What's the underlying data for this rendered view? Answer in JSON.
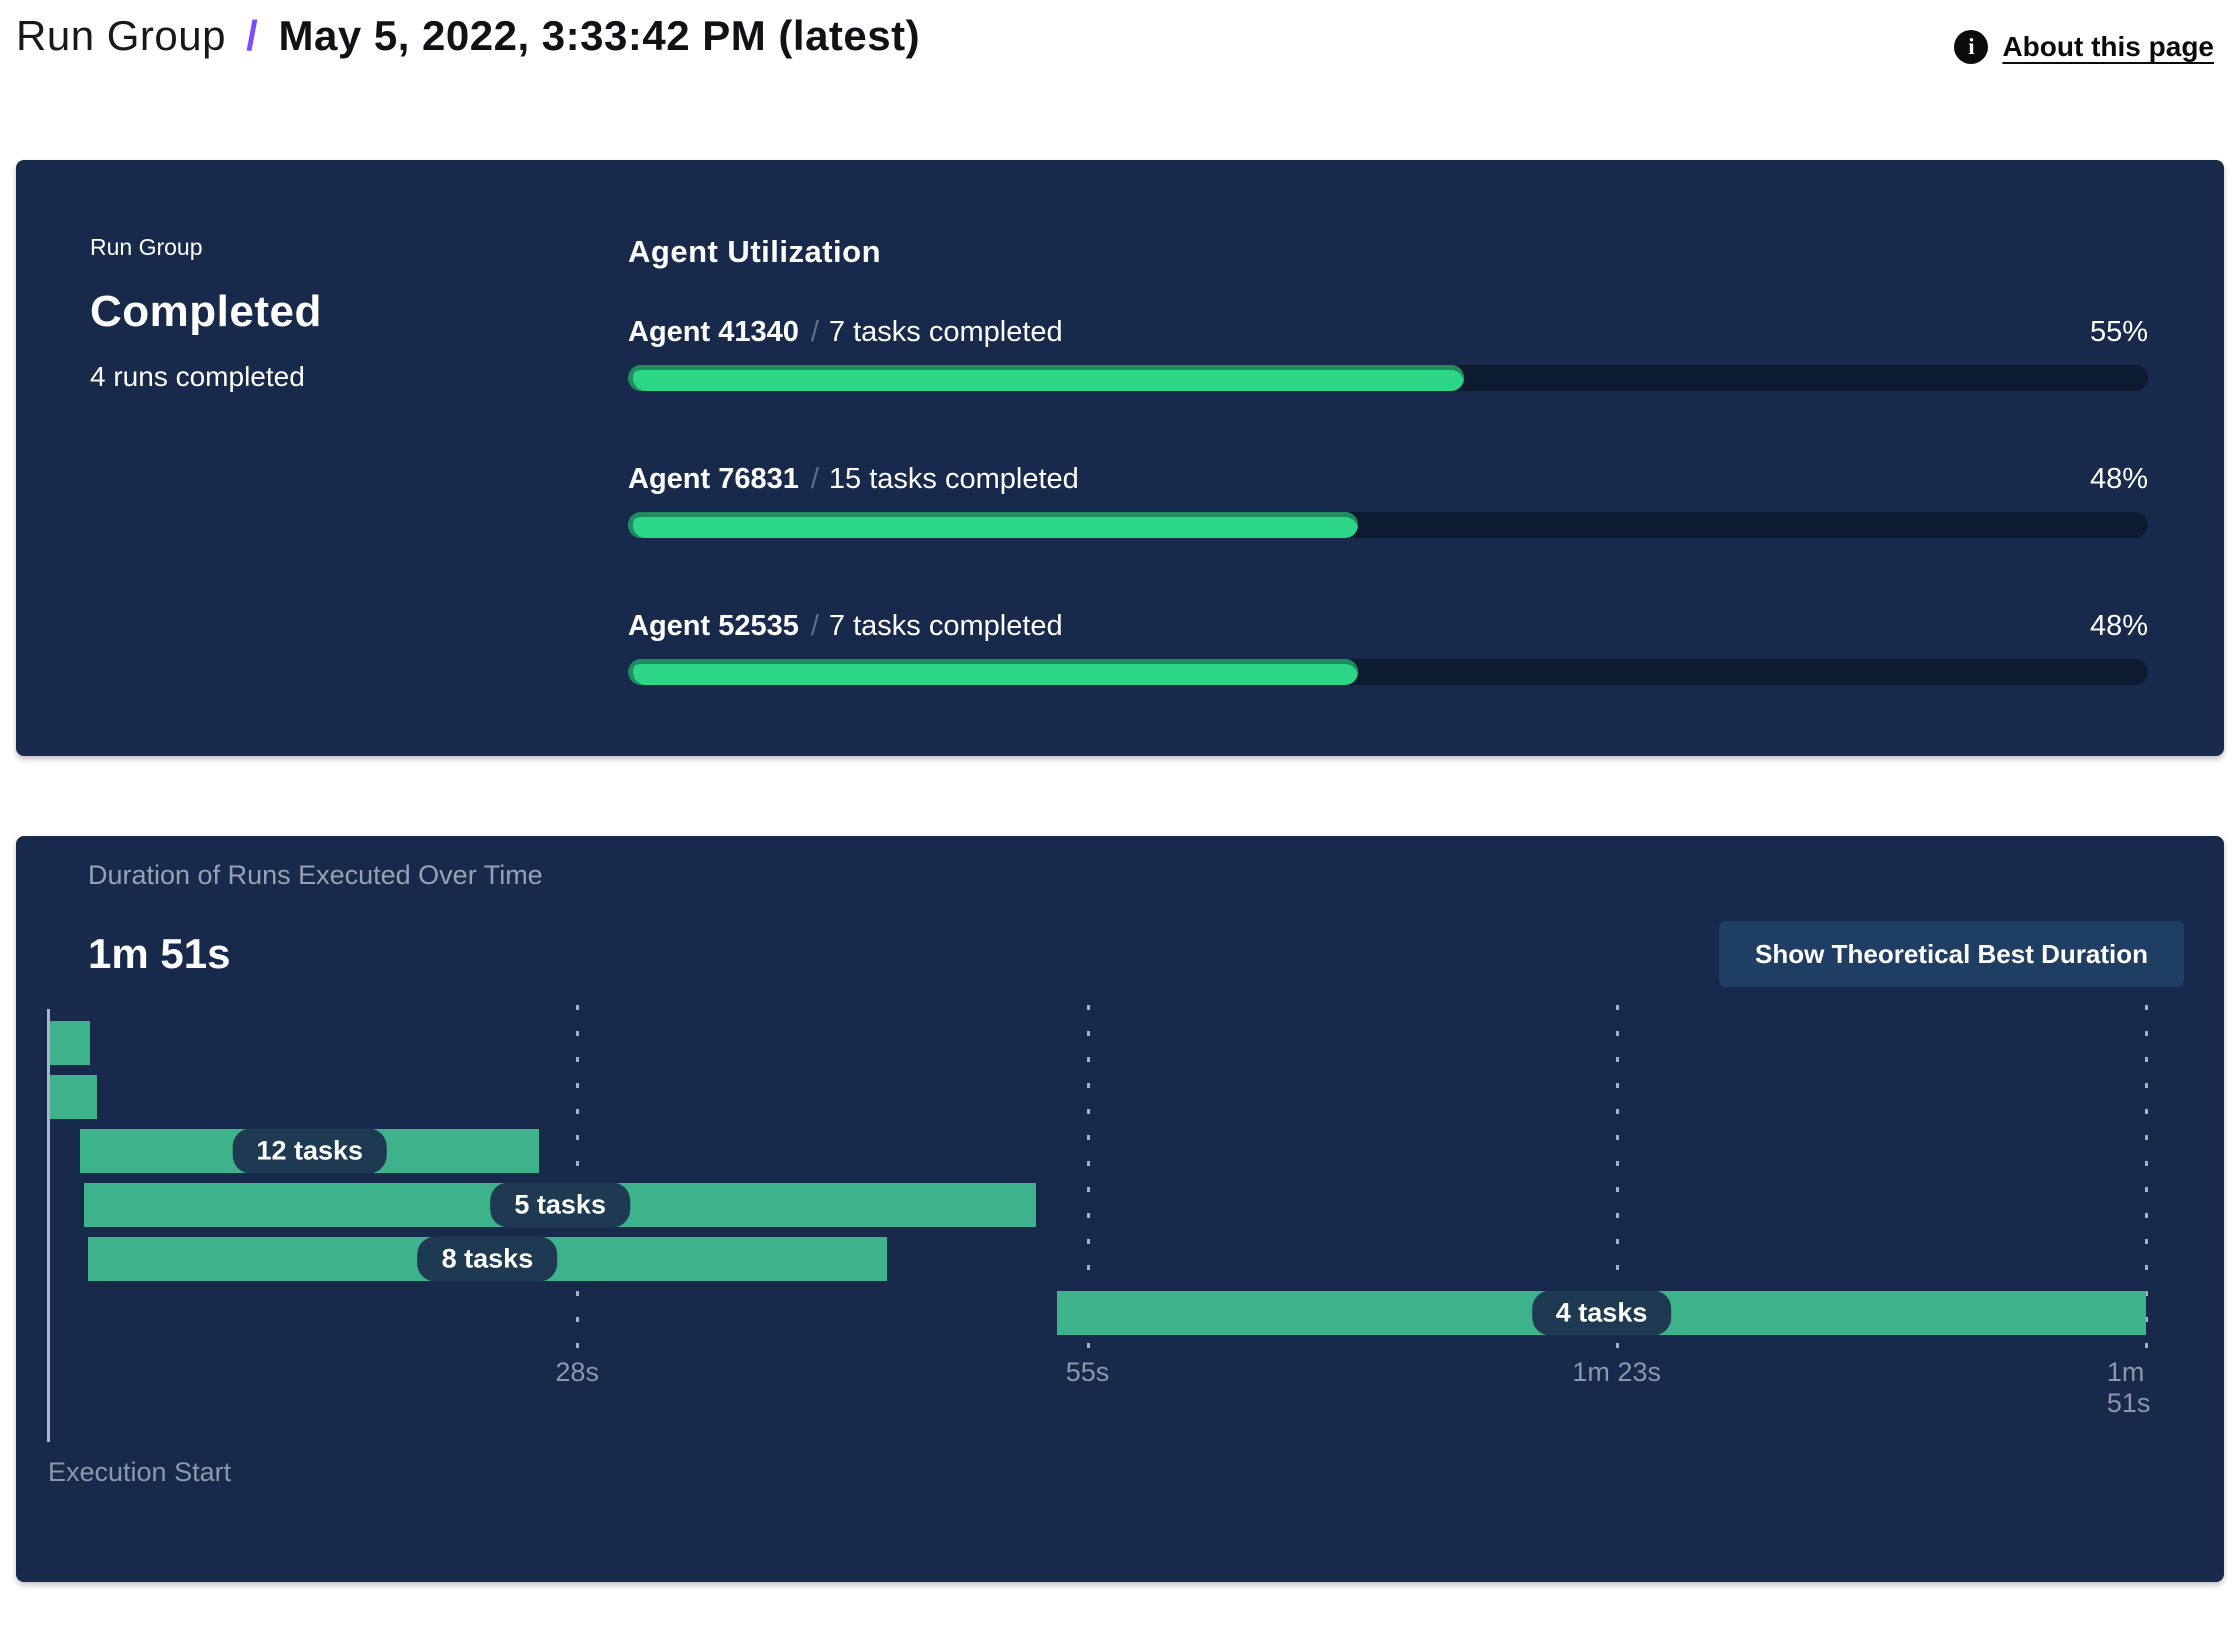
{
  "header": {
    "breadcrumb_root": "Run Group",
    "breadcrumb_separator": "/",
    "title": "May 5, 2022, 3:33:42 PM (latest)",
    "about_link": "About this page",
    "info_icon": "info-icon",
    "accent_color": "#7C4DFF"
  },
  "summary_panel": {
    "label": "Run Group",
    "status": "Completed",
    "runs_completed": "4 runs completed",
    "utilization_title": "Agent Utilization",
    "agents": [
      {
        "name": "Agent 41340",
        "separator": "/",
        "tasks": "7 tasks completed",
        "percent": 55,
        "percent_label": "55%"
      },
      {
        "name": "Agent 76831",
        "separator": "/",
        "tasks": "15 tasks completed",
        "percent": 48,
        "percent_label": "48%"
      },
      {
        "name": "Agent 52535",
        "separator": "/",
        "tasks": "7 tasks completed",
        "percent": 48,
        "percent_label": "48%"
      }
    ],
    "colors": {
      "panel_bg": "#172A4B",
      "track": "#0D1B31",
      "fill": "#2BD687",
      "fill_edge": "#1F8C60"
    }
  },
  "duration_panel": {
    "title": "Duration of Runs Executed Over Time",
    "total_duration": "1m 51s",
    "button_label": "Show Theoretical Best Duration"
  },
  "chart_data": {
    "type": "gantt",
    "title": "Duration of Runs Executed Over Time",
    "total_duration_label": "1m 51s",
    "x_unit": "seconds",
    "x_range": [
      0,
      111
    ],
    "execution_start_label": "Execution Start",
    "ticks": [
      {
        "s": 28,
        "label": "28s"
      },
      {
        "s": 55,
        "label": "55s"
      },
      {
        "s": 83,
        "label": "1m 23s"
      },
      {
        "s": 111,
        "label": "1m 51s"
      }
    ],
    "bars": [
      {
        "row": 0,
        "start_s": 0.1,
        "end_s": 2.2,
        "label": ""
      },
      {
        "row": 1,
        "start_s": 0.1,
        "end_s": 2.6,
        "label": ""
      },
      {
        "row": 2,
        "start_s": 1.7,
        "end_s": 26.0,
        "label": "12 tasks"
      },
      {
        "row": 3,
        "start_s": 1.9,
        "end_s": 52.3,
        "label": "5 tasks"
      },
      {
        "row": 4,
        "start_s": 2.1,
        "end_s": 44.4,
        "label": "8 tasks"
      },
      {
        "row": 5,
        "start_s": 53.4,
        "end_s": 111.0,
        "label": "4 tasks"
      }
    ],
    "bar_color": "#3EB28B",
    "label_pill_color": "#1E3A52",
    "grid": true,
    "legend": false
  }
}
